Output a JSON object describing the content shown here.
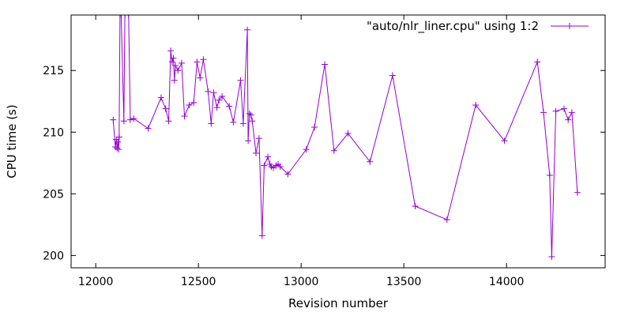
{
  "chart_data": {
    "type": "line",
    "title": "",
    "xlabel": "Revision number",
    "ylabel": "CPU time (s)",
    "xlim": [
      11880,
      14480
    ],
    "ylim": [
      199.0,
      219.5
    ],
    "x_ticks": [
      12000,
      12500,
      13000,
      13500,
      14000
    ],
    "y_ticks": [
      200,
      205,
      210,
      215
    ],
    "grid": false,
    "legend_position": "top-right",
    "series": [
      {
        "name": "\"auto/nlr_liner.cpu\" using 1:2",
        "color": "#9400d3",
        "marker": "plus",
        "x": [
          12085,
          12095,
          12100,
          12104,
          12108,
          12111,
          12114,
          12118,
          12124,
          12137,
          12142,
          12160,
          12168,
          12185,
          12255,
          12318,
          12340,
          12355,
          12365,
          12372,
          12378,
          12383,
          12388,
          12400,
          12418,
          12432,
          12455,
          12477,
          12493,
          12508,
          12524,
          12547,
          12562,
          12574,
          12590,
          12600,
          12615,
          12650,
          12670,
          12705,
          12718,
          12738,
          12742,
          12748,
          12755,
          12762,
          12780,
          12795,
          12810,
          12820,
          12838,
          12848,
          12855,
          12865,
          12878,
          12888,
          12898,
          12935,
          13025,
          13065,
          13115,
          13160,
          13228,
          13335,
          13445,
          13555,
          13710,
          13850,
          13990,
          14150,
          14180,
          14210,
          14220,
          14240,
          14280,
          14300,
          14318,
          14345
        ],
        "y": [
          211.0,
          208.8,
          209.4,
          208.7,
          209.2,
          208.6,
          209.6,
          219.5,
          219.5,
          210.9,
          219.5,
          219.5,
          211.0,
          211.1,
          210.3,
          212.8,
          211.9,
          210.9,
          216.6,
          215.7,
          216.0,
          214.2,
          215.4,
          215.0,
          215.6,
          211.3,
          212.2,
          212.4,
          215.7,
          214.4,
          215.9,
          213.3,
          210.7,
          213.2,
          212.0,
          212.6,
          212.9,
          212.1,
          210.8,
          214.2,
          210.7,
          218.3,
          209.3,
          211.5,
          211.4,
          210.9,
          208.3,
          209.5,
          201.6,
          207.3,
          208.0,
          207.4,
          207.2,
          207.1,
          207.3,
          207.4,
          207.2,
          206.6,
          208.6,
          210.4,
          215.5,
          208.5,
          209.9,
          207.6,
          214.6,
          204.0,
          202.9,
          212.2,
          209.3,
          215.7,
          211.6,
          206.5,
          199.9,
          211.7,
          211.9,
          211.0,
          211.6,
          205.1
        ]
      }
    ]
  }
}
